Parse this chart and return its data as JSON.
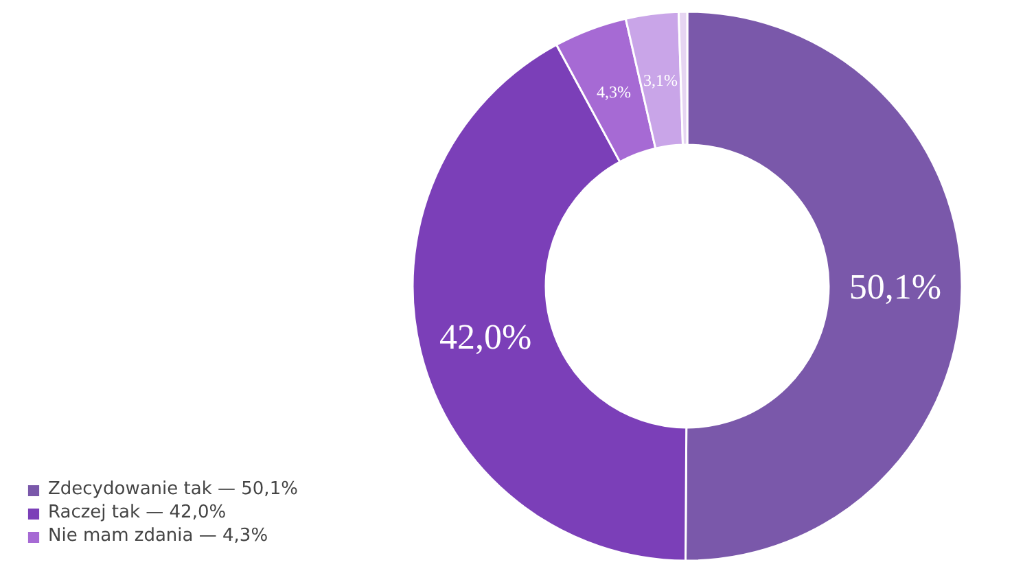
{
  "chart_data": {
    "type": "donut",
    "categories": [
      "Zdecydowanie tak — 50,1%",
      "Raczej tak — 42,0%",
      "Nie mam zdania — 4,3%",
      null,
      null
    ],
    "values": [
      50.1,
      42.0,
      4.3,
      3.1,
      0.5
    ],
    "colors": [
      "#7a58aa",
      "#7b3fb8",
      "#a66ad4",
      "#c9a5e8",
      "#e6d5f2"
    ],
    "value_labels": [
      "50,1%",
      "42,0%",
      "4,3%",
      "3,1%",
      null
    ],
    "legend": "bottom left"
  }
}
